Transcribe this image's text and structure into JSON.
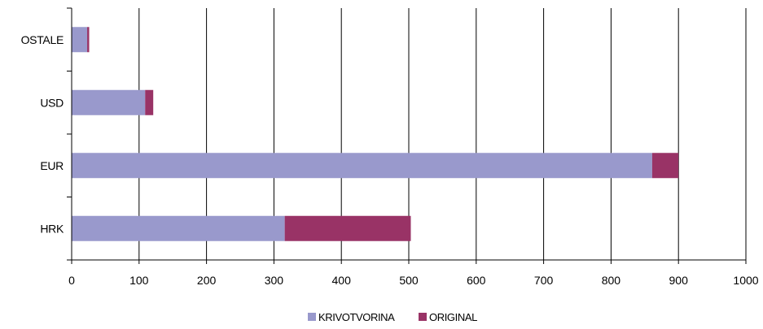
{
  "chart_data": {
    "type": "bar",
    "orientation": "horizontal",
    "stacked": true,
    "title": "",
    "xlabel": "",
    "ylabel": "",
    "categories": [
      "OSTALE",
      "USD",
      "EUR",
      "HRK"
    ],
    "series": [
      {
        "name": "KRIVOTVORINA",
        "color": "#9999cc",
        "values": [
          23,
          109,
          861,
          316
        ]
      },
      {
        "name": "ORIGINAL",
        "color": "#993366",
        "values": [
          3,
          12,
          39,
          187
        ]
      }
    ],
    "xlim": [
      0,
      1000
    ],
    "xticks": [
      "0",
      "100",
      "200",
      "300",
      "400",
      "500",
      "600",
      "700",
      "800",
      "900",
      "1000"
    ],
    "grid": "vertical",
    "legend": "bottom"
  }
}
